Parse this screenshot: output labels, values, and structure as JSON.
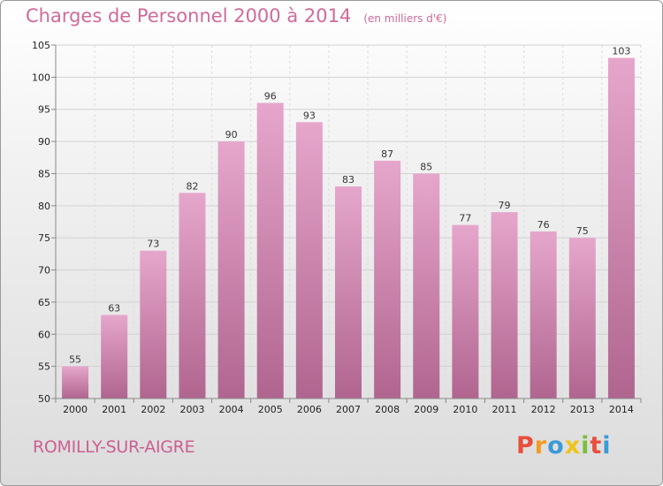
{
  "header": {
    "title": "Charges de Personnel 2000 à 2014",
    "subtitle": "(en milliers d'€)"
  },
  "footer": {
    "town": "ROMILLY-SUR-AIGRE",
    "logo_letters": [
      "P",
      "r",
      "o",
      "x",
      "i",
      "t",
      "i"
    ],
    "logo_colors": [
      "#e94e3c",
      "#f39a1f",
      "#3a9bd6",
      "#f0c419",
      "#7cbf3b",
      "#e94e3c",
      "#3a9bd6"
    ]
  },
  "chart_data": {
    "type": "bar",
    "categories": [
      "2000",
      "2001",
      "2002",
      "2003",
      "2004",
      "2005",
      "2006",
      "2007",
      "2008",
      "2009",
      "2010",
      "2011",
      "2012",
      "2013",
      "2014"
    ],
    "values": [
      55,
      63,
      73,
      82,
      90,
      96,
      93,
      83,
      87,
      85,
      77,
      79,
      76,
      75,
      103
    ],
    "ylim": [
      50,
      105
    ],
    "yticks": [
      50,
      55,
      60,
      65,
      70,
      75,
      80,
      85,
      90,
      95,
      100,
      105
    ],
    "grid": true,
    "bar_color_top": "#e6a6cc",
    "bar_color_bottom": "#b0658f",
    "title": "Charges de Personnel 2000 à 2014",
    "xlabel": "",
    "ylabel": ""
  }
}
